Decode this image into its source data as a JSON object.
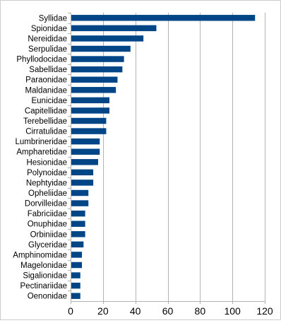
{
  "chart_data": {
    "type": "bar",
    "orientation": "horizontal",
    "categories": [
      "Syllidae",
      "Spionidae",
      "Nereididae",
      "Serpulidae",
      "Phyllodocidae",
      "Sabellidae",
      "Paraonidae",
      "Maldanidae",
      "Eunicidae",
      "Capitellidae",
      "Terebellidae",
      "Cirratulidae",
      "Lumbrineridae",
      "Ampharetidae",
      "Hesionidae",
      "Polynoidae",
      "Nephtyidae",
      "Opheliidae",
      "Dorvilleidae",
      "Fabriciidae",
      "Onuphidae",
      "Orbiniidae",
      "Glyceridae",
      "Amphinomidae",
      "Magelonidae",
      "Sigalionidae",
      "Pectinariidae",
      "Oenonidae"
    ],
    "values": [
      114,
      53,
      45,
      37,
      33,
      32,
      29,
      28,
      24,
      24,
      22,
      22,
      18,
      18,
      17,
      14,
      14,
      11,
      11,
      9,
      9,
      9,
      8,
      7,
      7,
      6,
      6,
      6
    ],
    "xlim": [
      0,
      120
    ],
    "xticks": [
      0,
      20,
      40,
      60,
      80,
      100,
      120
    ],
    "title": "",
    "xlabel": "",
    "ylabel": "",
    "grid": "vertical",
    "legend": "none",
    "colors": {
      "bar": "#004586",
      "grid": "#b3b3b3",
      "axis": "#b3b3b3"
    }
  }
}
